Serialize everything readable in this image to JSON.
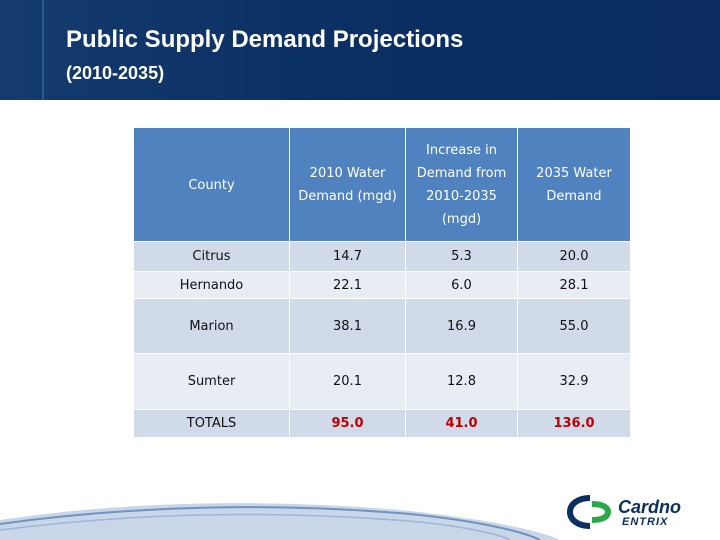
{
  "slide": {
    "title": "Public Supply Demand Projections",
    "subtitle": "(2010-2035)"
  },
  "table": {
    "headers": [
      "County",
      "2010 Water Demand (mgd)",
      "Increase in Demand from 2010-2035 (mgd)",
      "2035 Water Demand"
    ],
    "rows": [
      {
        "county": "Citrus",
        "demand_2010": "14.7",
        "increase": "5.3",
        "demand_2035": "20.0"
      },
      {
        "county": "Hernando",
        "demand_2010": "22.1",
        "increase": "6.0",
        "demand_2035": "28.1"
      },
      {
        "county": "Marion",
        "demand_2010": "38.1",
        "increase": "16.9",
        "demand_2035": "55.0"
      },
      {
        "county": "Sumter",
        "demand_2010": "20.1",
        "increase": "12.8",
        "demand_2035": "32.9"
      }
    ],
    "totals": {
      "label": "TOTALS",
      "demand_2010": "95.0",
      "increase": "41.0",
      "demand_2035": "136.0"
    }
  },
  "logo": {
    "name": "Cardno",
    "subname": "ENTRIX"
  },
  "colors": {
    "header": "#0b2f63",
    "table_header": "#4f82be",
    "row_dark": "#d0dae9",
    "row_light": "#e8edf4",
    "totals": "#c00000"
  }
}
